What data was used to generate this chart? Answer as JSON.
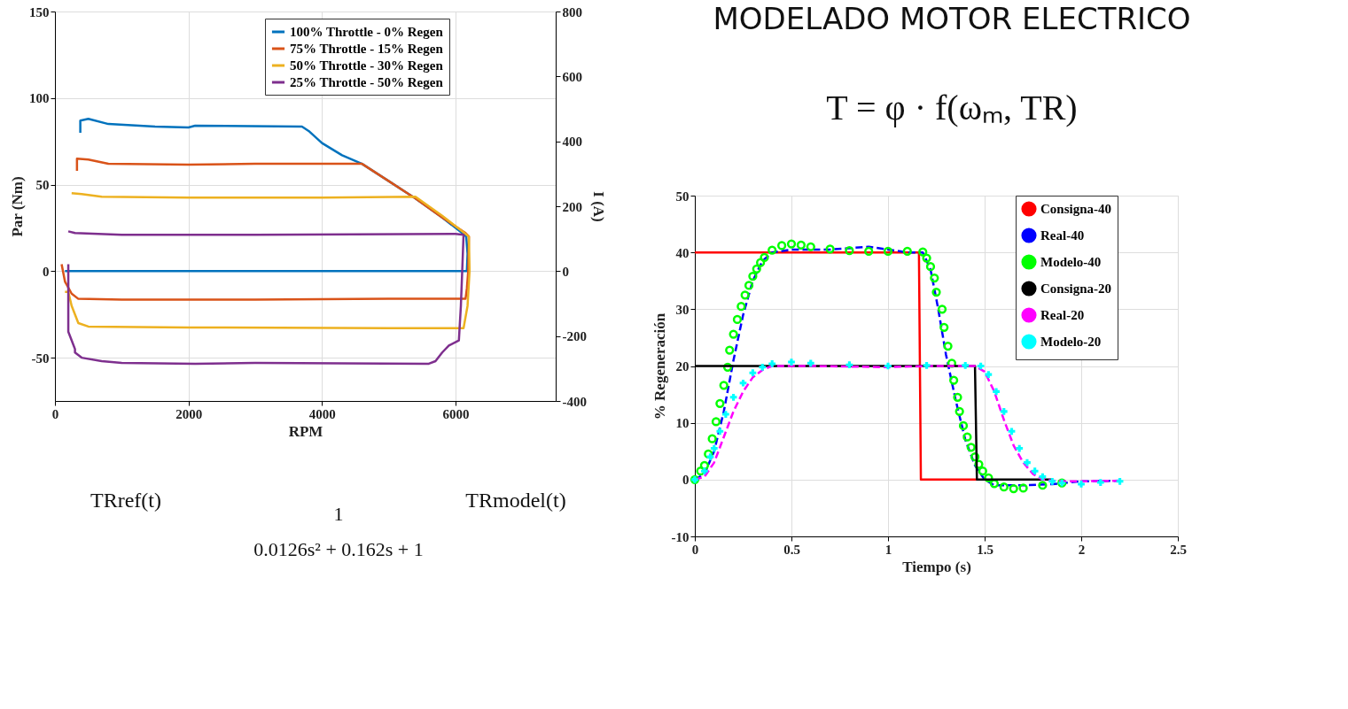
{
  "chart_data": [
    {
      "type": "line",
      "xlabel": "RPM",
      "ylabel": "Par (Nm)",
      "y2label": "I (A)",
      "xlim": [
        0,
        7500
      ],
      "xticks": [
        0,
        2000,
        4000,
        6000
      ],
      "ylim": [
        -75,
        150
      ],
      "yticks": [
        -50,
        0,
        50,
        100,
        150
      ],
      "y2lim": [
        -400,
        800
      ],
      "y2ticks": [
        -400,
        -200,
        0,
        200,
        400,
        600,
        800
      ],
      "grid": true,
      "legend": "top right",
      "line_style": "solid",
      "annotations": [
        "TRref(t)",
        "1",
        "0.0126s² + 0.162s + 1",
        "TRmodel(t)"
      ],
      "series": [
        {
          "name": "100% Throttle - 0% Regen",
          "color": "#0072bd",
          "x": [
            380,
            380,
            500,
            800,
            1500,
            2000,
            2100,
            3700,
            3800,
            4000,
            4300,
            4600,
            5000,
            5400,
            5800,
            6100,
            6160,
            6180,
            6170,
            6000,
            4000,
            2000,
            500,
            150
          ],
          "values": [
            80,
            87,
            88,
            85,
            83.5,
            83,
            84,
            83.5,
            81,
            74,
            67,
            62,
            52,
            42,
            31,
            22,
            20,
            10,
            0,
            0,
            0,
            0,
            0,
            0
          ]
        },
        {
          "name": "75% Throttle - 15% Regen",
          "color": "#d95319",
          "x": [
            330,
            330,
            500,
            800,
            2000,
            3000,
            4600,
            5000,
            5400,
            5800,
            6150,
            6200,
            6190,
            6170,
            6150,
            5000,
            3000,
            1000,
            350,
            250,
            150,
            100
          ],
          "values": [
            58,
            65,
            64.5,
            62,
            61.5,
            62,
            62,
            52,
            42,
            31,
            22,
            20,
            0,
            -10,
            -16,
            -16,
            -16.5,
            -16.5,
            -16,
            -13,
            -6,
            4
          ]
        },
        {
          "name": "50% Throttle - 30% Regen",
          "color": "#edb120",
          "x": [
            250,
            400,
            700,
            2000,
            4000,
            5400,
            5800,
            6100,
            6200,
            6210,
            6180,
            6120,
            5000,
            2000,
            500,
            350,
            300,
            250,
            200,
            150
          ],
          "values": [
            45,
            44.5,
            43,
            42.5,
            42.5,
            43,
            32,
            23,
            20,
            0,
            -20,
            -33,
            -33,
            -32.5,
            -32,
            -30,
            -25,
            -20,
            -12,
            -12
          ]
        },
        {
          "name": "25% Throttle - 50% Regen",
          "color": "#7e2f8e",
          "x": [
            200,
            300,
            1000,
            3000,
            6000,
            6120,
            6100,
            6080,
            6050,
            5900,
            5800,
            5700,
            5600,
            3000,
            2100,
            1000,
            700,
            400,
            300,
            300,
            250,
            200,
            200,
            200
          ],
          "values": [
            23,
            22,
            21,
            21,
            21.5,
            21,
            0,
            -20,
            -40,
            -43,
            -47,
            -52,
            -53.5,
            -53,
            -53.5,
            -53,
            -52,
            -50,
            -47,
            -45,
            -40,
            -35,
            -30,
            4
          ]
        }
      ]
    },
    {
      "type": "line",
      "title": "MODELADO MOTOR ELECTRICO",
      "annotations": [
        "T = φ · f(ωₘ, TR)"
      ],
      "xlabel": "Tiempo (s)",
      "ylabel": "% Regeneración",
      "xlim": [
        0,
        2.5
      ],
      "xticks": [
        0,
        0.5,
        1,
        1.5,
        2,
        2.5
      ],
      "ylim": [
        -10,
        50
      ],
      "yticks": [
        -10,
        0,
        10,
        20,
        30,
        40,
        50
      ],
      "grid": true,
      "legend": "top right",
      "series": [
        {
          "name": "Consigna-40",
          "color": "#ff0000",
          "line_style": "solid",
          "x": [
            0,
            1.16,
            1.17,
            1.46
          ],
          "values": [
            40,
            40,
            0,
            0
          ]
        },
        {
          "name": "Real-40",
          "color": "#0000ff",
          "line_style": "dashed",
          "x": [
            0,
            0.05,
            0.1,
            0.15,
            0.2,
            0.25,
            0.3,
            0.35,
            0.4,
            0.5,
            0.7,
            0.9,
            1.1,
            1.18,
            1.22,
            1.26,
            1.3,
            1.35,
            1.4,
            1.45,
            1.5,
            1.55,
            1.7,
            1.85,
            2.0,
            2.2
          ],
          "values": [
            0,
            1,
            5,
            12,
            21,
            29,
            35,
            38.5,
            40,
            40.5,
            40.5,
            41,
            40,
            40,
            37,
            30,
            22,
            14,
            7,
            2.5,
            0,
            -1,
            -1,
            -0.8,
            -0.3,
            -0.2
          ]
        },
        {
          "name": "Modelo-40",
          "color": "#00ff00",
          "type": "scatter",
          "marker": "circle",
          "x": [
            0,
            0.03,
            0.05,
            0.07,
            0.09,
            0.11,
            0.13,
            0.15,
            0.17,
            0.18,
            0.2,
            0.22,
            0.24,
            0.26,
            0.28,
            0.3,
            0.32,
            0.34,
            0.36,
            0.4,
            0.45,
            0.5,
            0.55,
            0.6,
            0.7,
            0.8,
            0.9,
            1.0,
            1.1,
            1.18,
            1.2,
            1.22,
            1.24,
            1.25,
            1.28,
            1.29,
            1.31,
            1.33,
            1.34,
            1.36,
            1.37,
            1.39,
            1.41,
            1.43,
            1.45,
            1.47,
            1.49,
            1.52,
            1.55,
            1.6,
            1.65,
            1.7,
            1.8,
            1.9
          ],
          "values": [
            0,
            1.5,
            2.5,
            4.5,
            7.2,
            10.2,
            13.4,
            16.6,
            19.8,
            22.8,
            25.6,
            28.2,
            30.5,
            32.5,
            34.2,
            35.8,
            37.1,
            38.2,
            39.1,
            40.4,
            41.2,
            41.5,
            41.3,
            41,
            40.6,
            40.3,
            40.2,
            40.2,
            40.2,
            40.1,
            39,
            37.5,
            35.5,
            33,
            30,
            26.8,
            23.5,
            20.5,
            17.5,
            14.5,
            12,
            9.5,
            7.5,
            5.7,
            4,
            2.7,
            1.5,
            0.3,
            -0.7,
            -1.3,
            -1.6,
            -1.5,
            -1,
            -0.6
          ]
        },
        {
          "name": "Consigna-20",
          "color": "#000000",
          "line_style": "solid",
          "x": [
            0,
            1.45,
            1.46,
            1.85
          ],
          "values": [
            20,
            20,
            0,
            0
          ]
        },
        {
          "name": "Real-20",
          "color": "#ff00ff",
          "line_style": "dashed",
          "x": [
            0,
            0.05,
            0.1,
            0.15,
            0.2,
            0.25,
            0.3,
            0.35,
            0.4,
            0.6,
            1.0,
            1.2,
            1.45,
            1.5,
            1.55,
            1.6,
            1.65,
            1.7,
            1.75,
            1.8,
            1.9,
            2.0,
            2.2
          ],
          "values": [
            0,
            0.5,
            3,
            7.5,
            12,
            15.5,
            18,
            19.3,
            20,
            20,
            19.8,
            20,
            20,
            19,
            15.5,
            10.5,
            6,
            3,
            1,
            0,
            -0.3,
            -0.3,
            -0.2
          ]
        },
        {
          "name": "Modelo-20",
          "color": "#00ffff",
          "type": "scatter",
          "marker": "cross",
          "x": [
            0,
            0.05,
            0.08,
            0.1,
            0.13,
            0.16,
            0.2,
            0.25,
            0.3,
            0.35,
            0.4,
            0.5,
            0.6,
            0.8,
            1.0,
            1.2,
            1.4,
            1.48,
            1.52,
            1.56,
            1.6,
            1.64,
            1.68,
            1.72,
            1.76,
            1.8,
            1.85,
            1.9,
            2.0,
            2.1,
            2.2
          ],
          "values": [
            0,
            1.5,
            4,
            5.5,
            8.5,
            11.5,
            14.5,
            17,
            18.8,
            19.8,
            20.4,
            20.7,
            20.5,
            20.2,
            20,
            20.1,
            20.1,
            20,
            18.5,
            15.5,
            12,
            8.5,
            5.5,
            3,
            1.5,
            0.5,
            -0.3,
            -0.6,
            -0.8,
            -0.5,
            -0.3
          ]
        }
      ]
    }
  ]
}
